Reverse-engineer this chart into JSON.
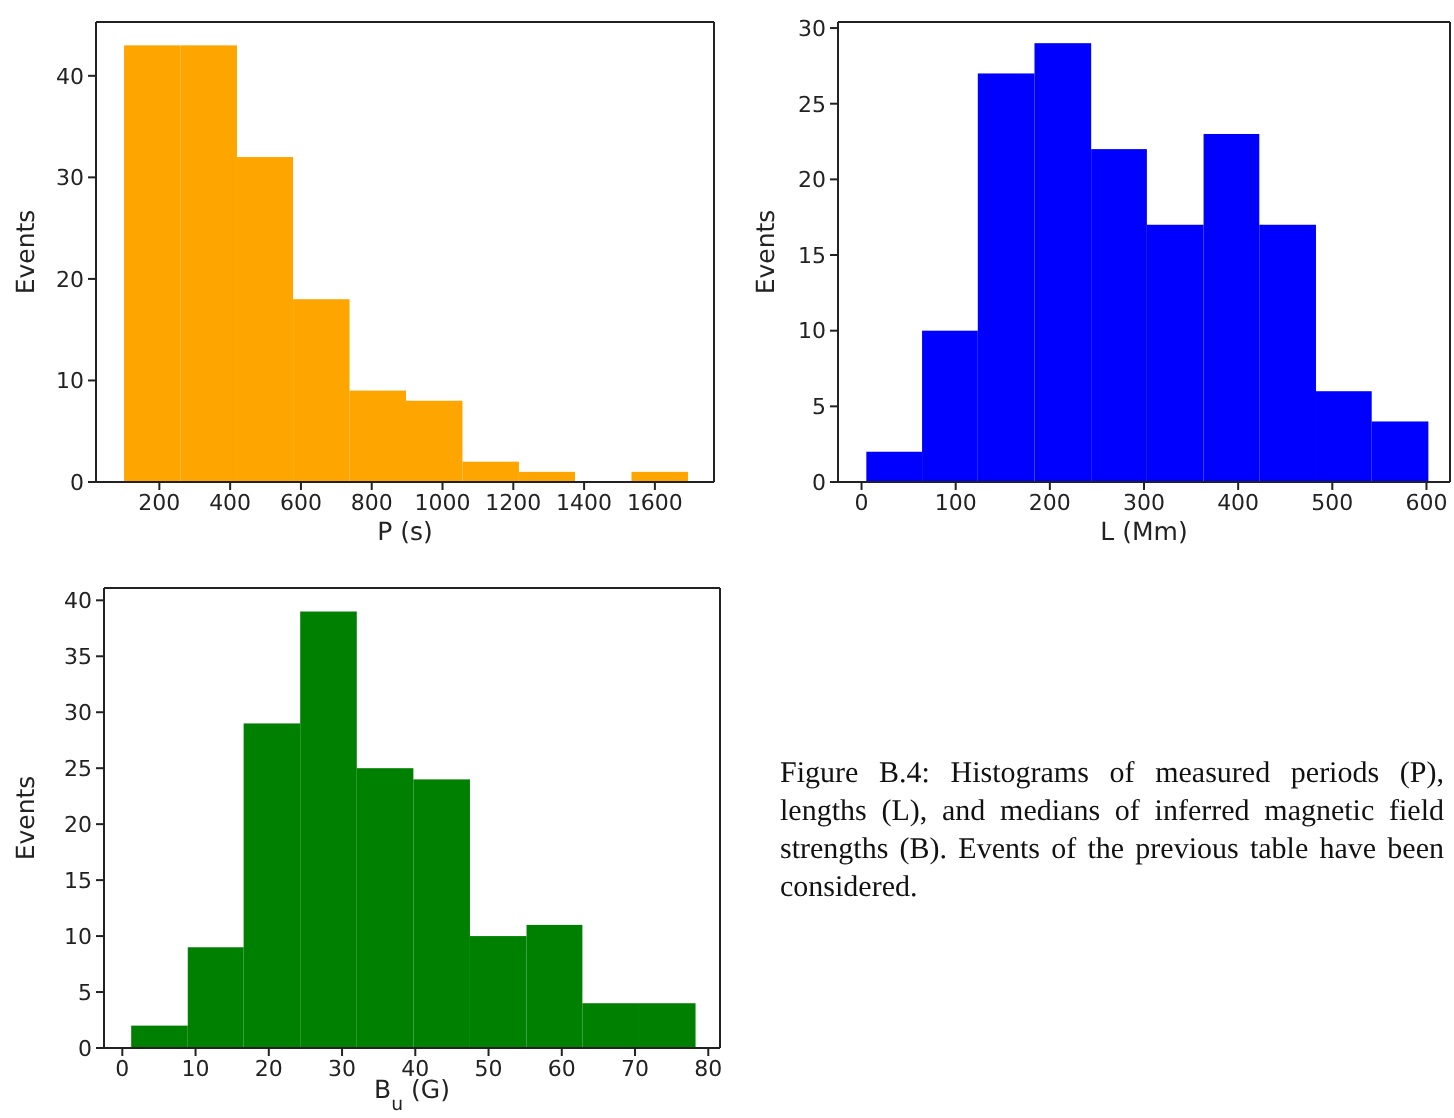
{
  "chart_data": [
    {
      "type": "histogram",
      "xlabel": "P (s)",
      "ylabel": "Events",
      "color": "#ffa500",
      "bins": [
        100,
        259,
        418,
        576,
        735,
        894,
        1053,
        1212,
        1370,
        1529,
        1688
      ],
      "values": [
        43,
        43,
        32,
        18,
        9,
        8,
        2,
        1,
        0,
        1
      ],
      "xlim": [
        21,
        1767
      ],
      "xticks": [
        200,
        400,
        600,
        800,
        1000,
        1200,
        1400,
        1600
      ],
      "ylim": [
        0,
        45.3
      ],
      "yticks": [
        0,
        10,
        20,
        30,
        40
      ]
    },
    {
      "type": "histogram",
      "xlabel": "L (Mm)",
      "ylabel": "Events",
      "color": "#0000ff",
      "bins": [
        5,
        64,
        123,
        183,
        243,
        302,
        362,
        421,
        481,
        540,
        600
      ],
      "values": [
        2,
        10,
        27,
        29,
        22,
        17,
        23,
        17,
        6,
        4
      ],
      "xlim": [
        -25,
        625
      ],
      "xticks": [
        0,
        100,
        200,
        300,
        400,
        500,
        600
      ],
      "ylim": [
        0,
        30.4
      ],
      "yticks": [
        0,
        5,
        10,
        15,
        20,
        25,
        30
      ]
    },
    {
      "type": "histogram",
      "xlabel": "B$_{u}$ (G)",
      "ylabel": "Events",
      "color": "#008000",
      "bins": [
        1.2,
        8.9,
        16.5,
        24.2,
        31.9,
        39.6,
        47.3,
        55.0,
        62.6,
        70.3,
        78.0
      ],
      "values": [
        2,
        9,
        29,
        39,
        25,
        24,
        10,
        11,
        4,
        4
      ],
      "xlim": [
        -2.5,
        81.6
      ],
      "xticks": [
        0,
        10,
        20,
        30,
        40,
        50,
        60,
        70,
        80
      ],
      "ylim": [
        0,
        41.1
      ],
      "yticks": [
        0,
        5,
        10,
        15,
        20,
        25,
        30,
        35,
        40
      ]
    },
    {
      "type": "other",
      "annotations": [
        "Figure B.4: Histograms of measured periods (P), lengths (L), and medians of inferred magnetic field strengths (B). Events of the previous table have been considered."
      ]
    }
  ]
}
